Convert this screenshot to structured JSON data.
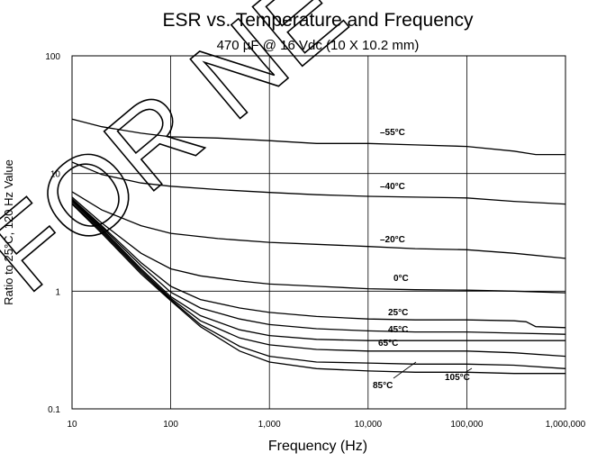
{
  "chart_data": {
    "type": "line",
    "title": "ESR vs. Temperature and Frequency",
    "subtitle": "470 µF @ 16 Vdc (10 X 10.2  mm)",
    "xlabel": "Frequency (Hz)",
    "ylabel": "Ratio to 25°C, 120 Hz Value",
    "x_scale": "log",
    "y_scale": "log",
    "xlim": [
      10,
      1000000
    ],
    "ylim": [
      0.1,
      100
    ],
    "grid": true,
    "x_ticks": [
      10,
      100,
      1000,
      10000,
      100000,
      1000000
    ],
    "x_tick_labels": [
      "10",
      "100",
      "1,000",
      "10,000",
      "100,000",
      "1,000,000"
    ],
    "y_ticks": [
      0.1,
      1,
      10,
      100
    ],
    "y_tick_labels": [
      "0.1",
      "1",
      "10",
      "100"
    ],
    "series": [
      {
        "name": "–55°C",
        "x": [
          10,
          20,
          50,
          100,
          300,
          1000,
          3000,
          10000,
          30000,
          100000,
          300000,
          500000,
          1000000
        ],
        "y": [
          29,
          25,
          22,
          20.5,
          20,
          19,
          18,
          18,
          17.5,
          17,
          15.5,
          14.5,
          14.5
        ]
      },
      {
        "name": "–40°C",
        "x": [
          10,
          20,
          50,
          100,
          300,
          1000,
          3000,
          10000,
          30000,
          100000,
          300000,
          1000000
        ],
        "y": [
          12.5,
          9.8,
          8.3,
          7.8,
          7.3,
          6.9,
          6.6,
          6.4,
          6.3,
          6.2,
          5.8,
          5.5
        ]
      },
      {
        "name": "–20°C",
        "x": [
          10,
          20,
          50,
          100,
          300,
          1000,
          3000,
          10000,
          30000,
          100000,
          300000,
          1000000
        ],
        "y": [
          7,
          4.9,
          3.6,
          3.1,
          2.8,
          2.6,
          2.5,
          2.4,
          2.3,
          2.25,
          2.1,
          1.9
        ]
      },
      {
        "name": "0°C",
        "x": [
          10,
          20,
          50,
          100,
          200,
          500,
          1000,
          3000,
          10000,
          30000,
          100000,
          300000,
          1000000
        ],
        "y": [
          6.3,
          3.8,
          2.1,
          1.55,
          1.35,
          1.22,
          1.15,
          1.1,
          1.05,
          1.03,
          1.02,
          1.0,
          0.97
        ]
      },
      {
        "name": "25°C",
        "x": [
          10,
          20,
          50,
          100,
          200,
          500,
          1000,
          3000,
          10000,
          30000,
          100000,
          300000,
          400000,
          500000,
          1000000
        ],
        "y": [
          6.1,
          3.6,
          1.75,
          1.1,
          0.85,
          0.72,
          0.66,
          0.61,
          0.58,
          0.57,
          0.57,
          0.56,
          0.55,
          0.5,
          0.49
        ]
      },
      {
        "name": "45°C",
        "x": [
          10,
          20,
          50,
          100,
          200,
          500,
          1000,
          3000,
          10000,
          30000,
          100000,
          300000,
          1000000
        ],
        "y": [
          6,
          3.5,
          1.65,
          0.98,
          0.72,
          0.58,
          0.52,
          0.48,
          0.46,
          0.45,
          0.45,
          0.44,
          0.43
        ]
      },
      {
        "name": "65°C",
        "x": [
          10,
          20,
          50,
          100,
          200,
          500,
          1000,
          3000,
          10000,
          30000,
          100000,
          300000,
          1000000
        ],
        "y": [
          5.9,
          3.4,
          1.55,
          0.9,
          0.62,
          0.47,
          0.42,
          0.39,
          0.38,
          0.38,
          0.38,
          0.38,
          0.38
        ]
      },
      {
        "name": "85°C",
        "x": [
          10,
          20,
          50,
          100,
          200,
          500,
          1000,
          3000,
          10000,
          30000,
          100000,
          300000,
          1000000
        ],
        "y": [
          5.8,
          3.3,
          1.5,
          0.87,
          0.56,
          0.4,
          0.35,
          0.32,
          0.31,
          0.31,
          0.31,
          0.3,
          0.28
        ]
      },
      {
        "name": "105°C",
        "x": [
          10,
          20,
          50,
          100,
          200,
          500,
          1000,
          3000,
          10000,
          30000,
          100000,
          300000,
          1000000
        ],
        "y": [
          5.6,
          3.2,
          1.45,
          0.85,
          0.52,
          0.34,
          0.28,
          0.25,
          0.245,
          0.24,
          0.24,
          0.235,
          0.22
        ]
      },
      {
        "name": "",
        "x": [
          10,
          20,
          50,
          100,
          200,
          500,
          1000,
          3000,
          10000,
          30000,
          100000,
          300000,
          1000000
        ],
        "y": [
          5.5,
          3.1,
          1.4,
          0.83,
          0.5,
          0.31,
          0.25,
          0.22,
          0.21,
          0.205,
          0.205,
          0.2,
          0.2
        ]
      }
    ],
    "watermark": "FOR NE"
  }
}
